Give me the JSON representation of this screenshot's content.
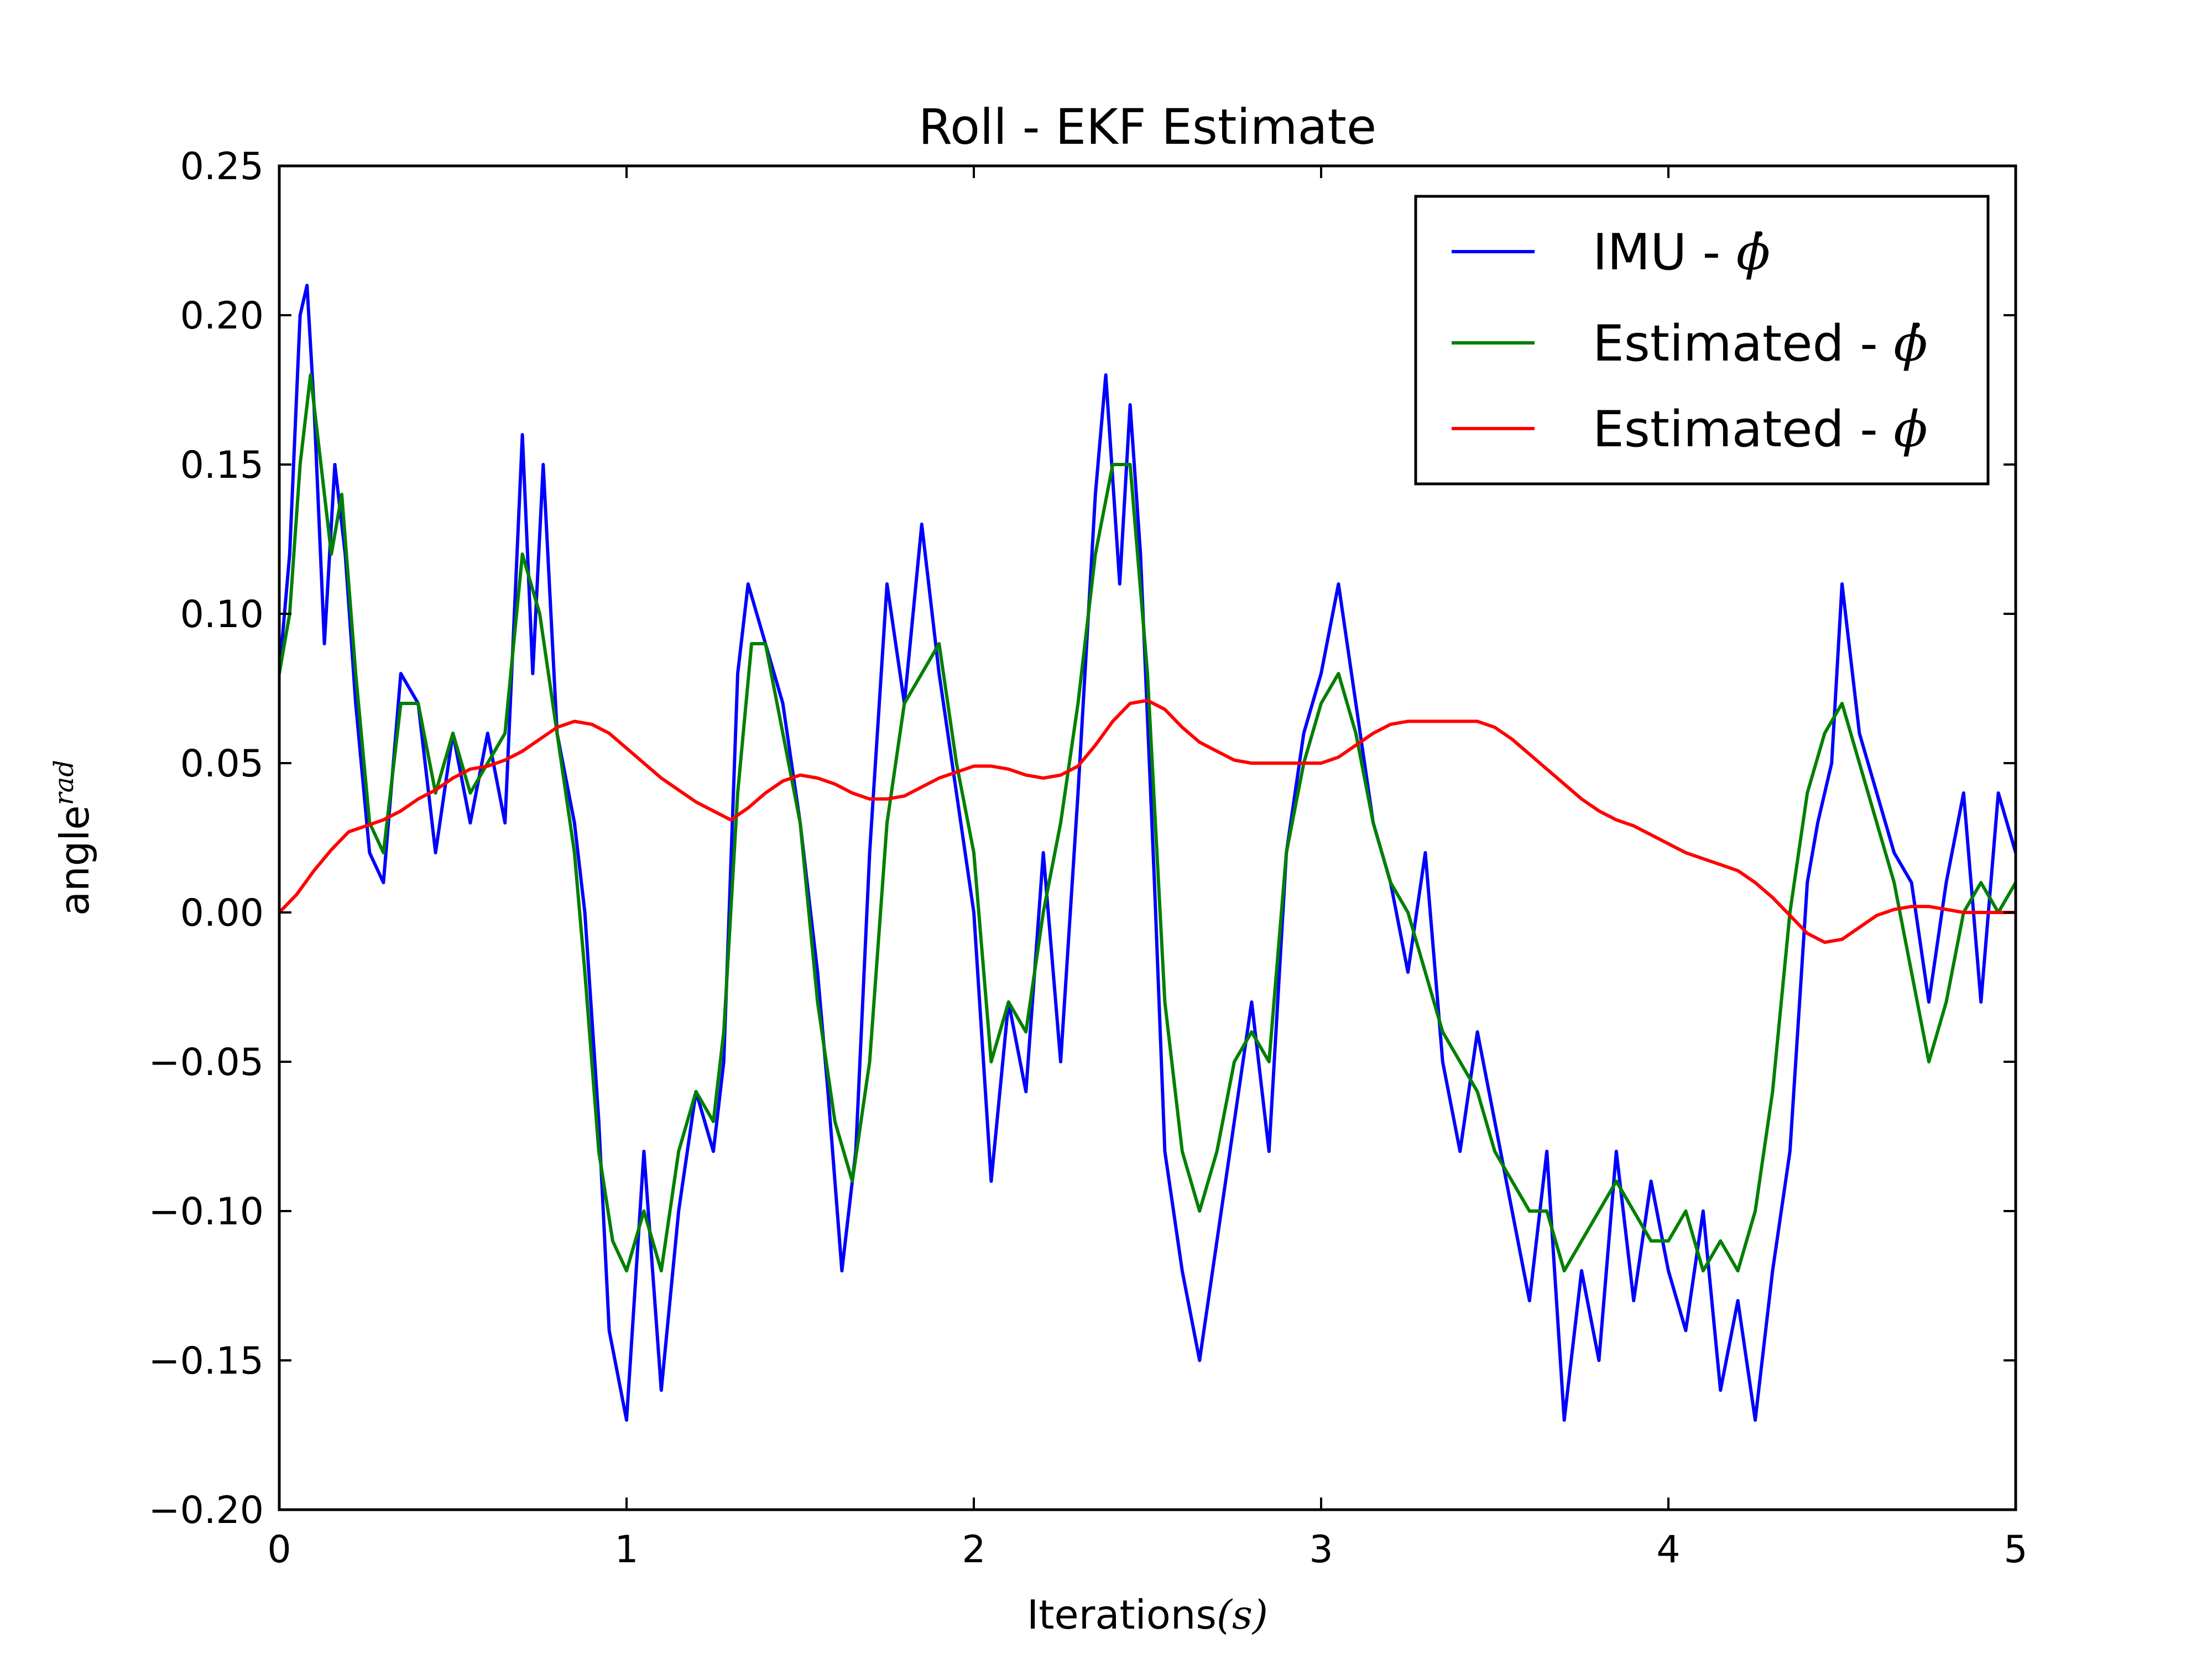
{
  "chart_data": {
    "type": "line",
    "title": "Roll - EKF Estimate",
    "xlabel": "Iterations",
    "xlabel_math": "(s)",
    "ylabel": "angle",
    "ylabel_sup": "rad",
    "xlim": [
      0,
      5
    ],
    "ylim": [
      -0.2,
      0.25
    ],
    "xticks": [
      0,
      1,
      2,
      3,
      4,
      5
    ],
    "xtick_labels": [
      "0",
      "1",
      "2",
      "3",
      "4",
      "5"
    ],
    "yticks": [
      -0.2,
      -0.15,
      -0.1,
      -0.05,
      0.0,
      0.05,
      0.1,
      0.15,
      0.2,
      0.25
    ],
    "ytick_labels": [
      "−0.20",
      "−0.15",
      "−0.10",
      "−0.05",
      "0.00",
      "0.05",
      "0.10",
      "0.15",
      "0.20",
      "0.25"
    ],
    "grid": false,
    "legend_position": "top-right",
    "series": [
      {
        "name": "IMU - ",
        "name_math": "ϕ̇",
        "color": "#0000ff",
        "x": [
          0.0,
          0.03,
          0.06,
          0.08,
          0.1,
          0.13,
          0.16,
          0.19,
          0.22,
          0.26,
          0.3,
          0.35,
          0.4,
          0.45,
          0.5,
          0.55,
          0.6,
          0.65,
          0.7,
          0.73,
          0.76,
          0.8,
          0.85,
          0.88,
          0.92,
          0.95,
          1.0,
          1.05,
          1.1,
          1.15,
          1.2,
          1.25,
          1.28,
          1.32,
          1.35,
          1.4,
          1.45,
          1.5,
          1.55,
          1.58,
          1.62,
          1.66,
          1.7,
          1.75,
          1.8,
          1.85,
          1.9,
          1.95,
          2.0,
          2.05,
          2.1,
          2.15,
          2.2,
          2.25,
          2.3,
          2.35,
          2.38,
          2.42,
          2.45,
          2.48,
          2.52,
          2.55,
          2.6,
          2.65,
          2.7,
          2.75,
          2.8,
          2.85,
          2.9,
          2.95,
          3.0,
          3.05,
          3.1,
          3.15,
          3.2,
          3.25,
          3.3,
          3.35,
          3.4,
          3.45,
          3.5,
          3.55,
          3.6,
          3.65,
          3.7,
          3.75,
          3.8,
          3.85,
          3.9,
          3.95,
          4.0,
          4.05,
          4.1,
          4.15,
          4.2,
          4.25,
          4.3,
          4.35,
          4.4,
          4.43,
          4.47,
          4.5,
          4.55,
          4.6,
          4.65,
          4.7,
          4.75,
          4.8,
          4.85,
          4.9,
          4.95,
          5.0
        ],
        "values": [
          0.08,
          0.12,
          0.2,
          0.21,
          0.17,
          0.09,
          0.15,
          0.12,
          0.07,
          0.02,
          0.01,
          0.08,
          0.07,
          0.02,
          0.06,
          0.03,
          0.06,
          0.03,
          0.16,
          0.08,
          0.15,
          0.06,
          0.03,
          0.0,
          -0.07,
          -0.14,
          -0.17,
          -0.08,
          -0.16,
          -0.1,
          -0.06,
          -0.08,
          -0.05,
          0.08,
          0.11,
          0.09,
          0.07,
          0.03,
          -0.02,
          -0.06,
          -0.12,
          -0.08,
          0.02,
          0.11,
          0.07,
          0.13,
          0.08,
          0.04,
          0.0,
          -0.09,
          -0.03,
          -0.06,
          0.02,
          -0.05,
          0.04,
          0.14,
          0.18,
          0.11,
          0.17,
          0.12,
          0.01,
          -0.08,
          -0.12,
          -0.15,
          -0.11,
          -0.07,
          -0.03,
          -0.08,
          0.02,
          0.06,
          0.08,
          0.11,
          0.07,
          0.03,
          0.01,
          -0.02,
          0.02,
          -0.05,
          -0.08,
          -0.04,
          -0.07,
          -0.1,
          -0.13,
          -0.08,
          -0.17,
          -0.12,
          -0.15,
          -0.08,
          -0.13,
          -0.09,
          -0.12,
          -0.14,
          -0.1,
          -0.16,
          -0.13,
          -0.17,
          -0.12,
          -0.08,
          0.01,
          0.03,
          0.05,
          0.11,
          0.06,
          0.04,
          0.02,
          0.01,
          -0.03,
          0.01,
          0.04,
          -0.03,
          0.04,
          0.02
        ]
      },
      {
        "name": "Estimated - ",
        "name_math": "ϕ̇",
        "color": "#008000",
        "x": [
          0.0,
          0.03,
          0.06,
          0.09,
          0.12,
          0.15,
          0.18,
          0.22,
          0.26,
          0.3,
          0.35,
          0.4,
          0.45,
          0.5,
          0.55,
          0.6,
          0.65,
          0.7,
          0.75,
          0.8,
          0.85,
          0.88,
          0.92,
          0.96,
          1.0,
          1.05,
          1.1,
          1.15,
          1.2,
          1.25,
          1.28,
          1.32,
          1.36,
          1.4,
          1.45,
          1.5,
          1.55,
          1.6,
          1.65,
          1.7,
          1.75,
          1.8,
          1.85,
          1.9,
          1.95,
          2.0,
          2.05,
          2.1,
          2.15,
          2.2,
          2.25,
          2.3,
          2.35,
          2.4,
          2.45,
          2.5,
          2.55,
          2.6,
          2.65,
          2.7,
          2.75,
          2.8,
          2.85,
          2.9,
          2.95,
          3.0,
          3.05,
          3.1,
          3.15,
          3.2,
          3.25,
          3.3,
          3.35,
          3.4,
          3.45,
          3.5,
          3.55,
          3.6,
          3.65,
          3.7,
          3.75,
          3.8,
          3.85,
          3.9,
          3.95,
          4.0,
          4.05,
          4.1,
          4.15,
          4.2,
          4.25,
          4.3,
          4.35,
          4.4,
          4.45,
          4.5,
          4.55,
          4.6,
          4.65,
          4.7,
          4.75,
          4.8,
          4.85,
          4.9,
          4.95,
          5.0
        ],
        "values": [
          0.08,
          0.1,
          0.15,
          0.18,
          0.15,
          0.12,
          0.14,
          0.08,
          0.03,
          0.02,
          0.07,
          0.07,
          0.04,
          0.06,
          0.04,
          0.05,
          0.06,
          0.12,
          0.1,
          0.06,
          0.02,
          -0.02,
          -0.08,
          -0.11,
          -0.12,
          -0.1,
          -0.12,
          -0.08,
          -0.06,
          -0.07,
          -0.04,
          0.04,
          0.09,
          0.09,
          0.06,
          0.03,
          -0.03,
          -0.07,
          -0.09,
          -0.05,
          0.03,
          0.07,
          0.08,
          0.09,
          0.05,
          0.02,
          -0.05,
          -0.03,
          -0.04,
          0.0,
          0.03,
          0.07,
          0.12,
          0.15,
          0.15,
          0.08,
          -0.03,
          -0.08,
          -0.1,
          -0.08,
          -0.05,
          -0.04,
          -0.05,
          0.02,
          0.05,
          0.07,
          0.08,
          0.06,
          0.03,
          0.01,
          0.0,
          -0.02,
          -0.04,
          -0.05,
          -0.06,
          -0.08,
          -0.09,
          -0.1,
          -0.1,
          -0.12,
          -0.11,
          -0.1,
          -0.09,
          -0.1,
          -0.11,
          -0.11,
          -0.1,
          -0.12,
          -0.11,
          -0.12,
          -0.1,
          -0.06,
          0.0,
          0.04,
          0.06,
          0.07,
          0.05,
          0.03,
          0.01,
          -0.02,
          -0.05,
          -0.03,
          0.0,
          0.01,
          0.0,
          0.01
        ]
      },
      {
        "name": "Estimated - ",
        "name_math": "ϕ",
        "color": "#ff0000",
        "x": [
          0.0,
          0.05,
          0.1,
          0.15,
          0.2,
          0.25,
          0.3,
          0.35,
          0.4,
          0.45,
          0.5,
          0.55,
          0.6,
          0.65,
          0.7,
          0.75,
          0.8,
          0.85,
          0.9,
          0.95,
          1.0,
          1.05,
          1.1,
          1.15,
          1.2,
          1.25,
          1.3,
          1.35,
          1.4,
          1.45,
          1.5,
          1.55,
          1.6,
          1.65,
          1.7,
          1.75,
          1.8,
          1.85,
          1.9,
          1.95,
          2.0,
          2.05,
          2.1,
          2.15,
          2.2,
          2.25,
          2.3,
          2.35,
          2.4,
          2.45,
          2.5,
          2.55,
          2.6,
          2.65,
          2.7,
          2.75,
          2.8,
          2.85,
          2.9,
          2.95,
          3.0,
          3.05,
          3.1,
          3.15,
          3.2,
          3.25,
          3.3,
          3.35,
          3.4,
          3.45,
          3.5,
          3.55,
          3.6,
          3.65,
          3.7,
          3.75,
          3.8,
          3.85,
          3.9,
          3.95,
          4.0,
          4.05,
          4.1,
          4.15,
          4.2,
          4.25,
          4.3,
          4.35,
          4.4,
          4.45,
          4.5,
          4.55,
          4.6,
          4.65,
          4.7,
          4.75,
          4.8,
          4.85,
          4.9,
          4.95,
          5.0
        ],
        "values": [
          0.0,
          0.006,
          0.014,
          0.021,
          0.027,
          0.029,
          0.031,
          0.034,
          0.038,
          0.041,
          0.045,
          0.048,
          0.049,
          0.051,
          0.054,
          0.058,
          0.062,
          0.064,
          0.063,
          0.06,
          0.055,
          0.05,
          0.045,
          0.041,
          0.037,
          0.034,
          0.031,
          0.035,
          0.04,
          0.044,
          0.046,
          0.045,
          0.043,
          0.04,
          0.038,
          0.038,
          0.039,
          0.042,
          0.045,
          0.047,
          0.049,
          0.049,
          0.048,
          0.046,
          0.045,
          0.046,
          0.049,
          0.056,
          0.064,
          0.07,
          0.071,
          0.068,
          0.062,
          0.057,
          0.054,
          0.051,
          0.05,
          0.05,
          0.05,
          0.05,
          0.05,
          0.052,
          0.056,
          0.06,
          0.063,
          0.064,
          0.064,
          0.064,
          0.064,
          0.064,
          0.062,
          0.058,
          0.053,
          0.048,
          0.043,
          0.038,
          0.034,
          0.031,
          0.029,
          0.026,
          0.023,
          0.02,
          0.018,
          0.016,
          0.014,
          0.01,
          0.005,
          -0.001,
          -0.007,
          -0.01,
          -0.009,
          -0.005,
          -0.001,
          0.001,
          0.002,
          0.002,
          0.001,
          0.0,
          0.0,
          0.0,
          0.0
        ]
      }
    ]
  }
}
